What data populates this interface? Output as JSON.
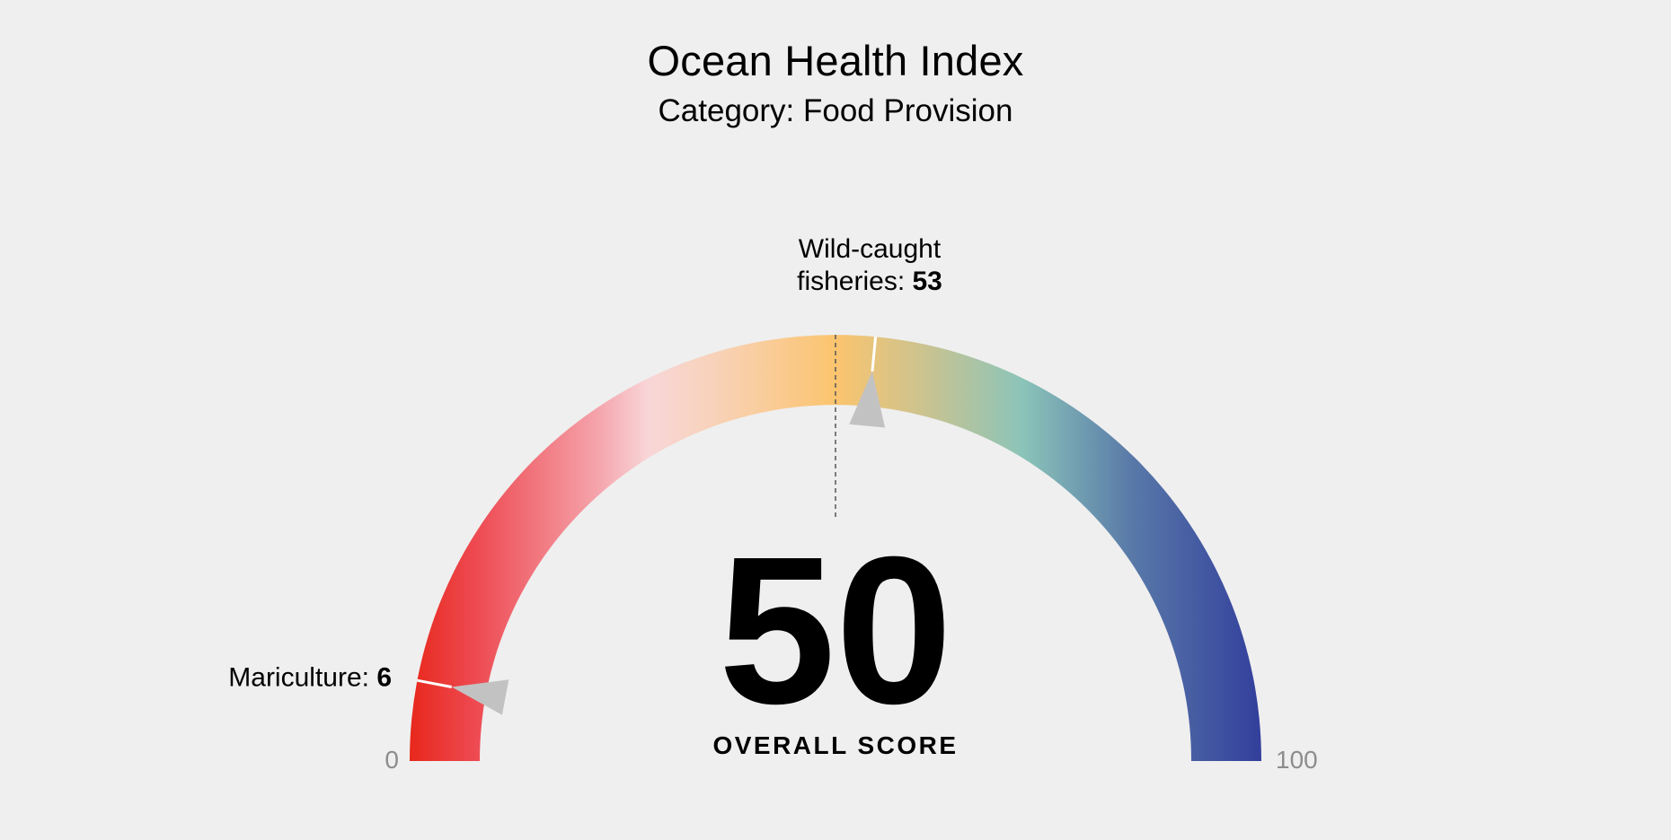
{
  "chart_data": {
    "type": "gauge",
    "title": "Ocean Health Index",
    "subtitle": "Category: Food Provision",
    "min": 0,
    "max": 100,
    "min_label": "0",
    "max_label": "100",
    "value": 50,
    "value_label": "50",
    "value_caption": "OVERALL SCORE",
    "markers": [
      {
        "label_lines": [
          "Wild-caught",
          "fisheries: "
        ],
        "value": 53,
        "value_text": "53",
        "placement": "top"
      },
      {
        "label_lines": [
          "Mariculture: "
        ],
        "value": 6,
        "value_text": "6",
        "placement": "left"
      }
    ],
    "gradient": [
      {
        "offset": 0.0,
        "color": "#e8281c"
      },
      {
        "offset": 0.08,
        "color": "#ee4b53"
      },
      {
        "offset": 0.22,
        "color": "#f5a3ab"
      },
      {
        "offset": 0.28,
        "color": "#f8d6d8"
      },
      {
        "offset": 0.36,
        "color": "#f8d2b8"
      },
      {
        "offset": 0.5,
        "color": "#fbc46e"
      },
      {
        "offset": 0.6,
        "color": "#cdc38e"
      },
      {
        "offset": 0.72,
        "color": "#8bc4b9"
      },
      {
        "offset": 0.85,
        "color": "#5878a8"
      },
      {
        "offset": 1.0,
        "color": "#333f9c"
      }
    ]
  }
}
